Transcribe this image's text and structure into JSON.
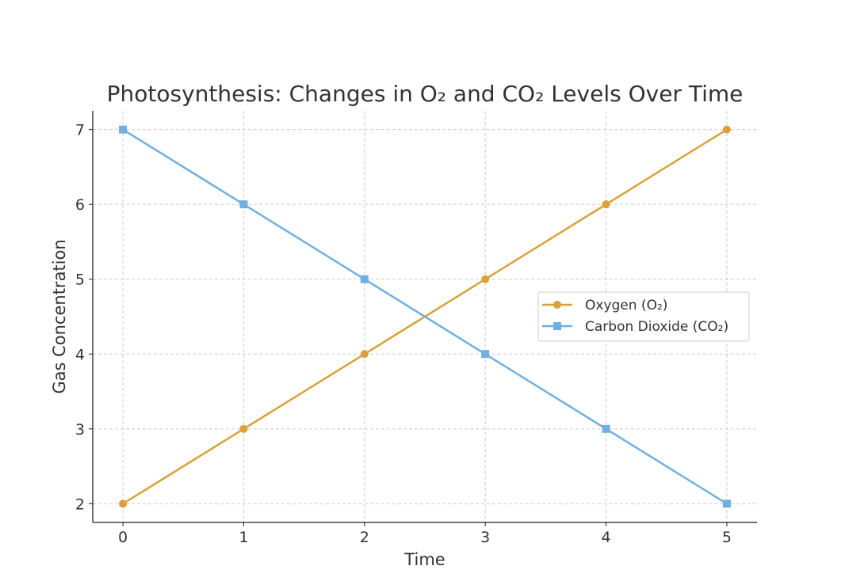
{
  "chart_data": {
    "type": "line",
    "title": "Photosynthesis: Changes in O₂ and CO₂ Levels Over Time",
    "xlabel": "Time",
    "ylabel": "Gas Concentration",
    "x": [
      0,
      1,
      2,
      3,
      4,
      5
    ],
    "xlim": [
      -0.25,
      5.25
    ],
    "ylim": [
      1.75,
      7.25
    ],
    "xticks": [
      "0",
      "1",
      "2",
      "3",
      "4",
      "5"
    ],
    "yticks": [
      "2",
      "3",
      "4",
      "5",
      "6",
      "7"
    ],
    "grid": true,
    "legend_position": "center-right",
    "series": [
      {
        "name": "Oxygen (O₂)",
        "values": [
          2,
          3,
          4,
          5,
          6,
          7
        ],
        "color": "#DAA03A",
        "marker": "circle"
      },
      {
        "name": "Carbon Dioxide (CO₂)",
        "values": [
          7,
          6,
          5,
          4,
          3,
          2
        ],
        "color": "#6FB0E0",
        "marker": "square"
      }
    ]
  }
}
